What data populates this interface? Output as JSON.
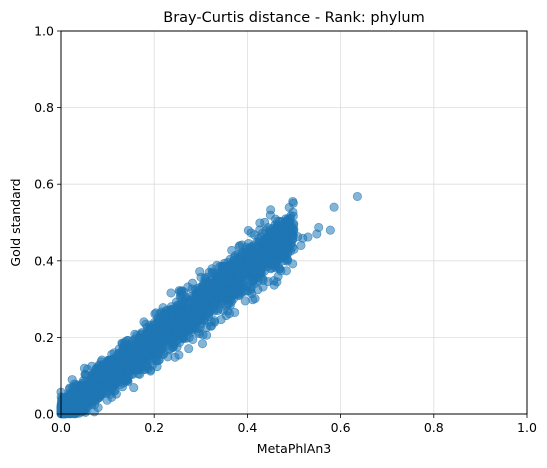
{
  "chart_data": {
    "type": "scatter",
    "title": "Bray-Curtis distance - Rank: phylum",
    "xlabel": "MetaPhlAn3",
    "ylabel": "Gold standard",
    "xlim": [
      0.0,
      1.0
    ],
    "ylim": [
      0.0,
      1.0
    ],
    "xticks": [
      "0.0",
      "0.2",
      "0.4",
      "0.6",
      "0.8",
      "1.0"
    ],
    "yticks": [
      "0.0",
      "0.2",
      "0.4",
      "0.6",
      "0.8",
      "1.0"
    ],
    "grid": true,
    "marker_color": "#1f77b4",
    "marker_alpha": 0.55,
    "density_band": {
      "x_range": [
        0.0,
        0.5
      ],
      "slope": 0.95,
      "intercept": 0.0,
      "spread": 0.035,
      "n_points": 2600
    },
    "outliers": [
      {
        "x": 0.636,
        "y": 0.568
      },
      {
        "x": 0.586,
        "y": 0.54
      },
      {
        "x": 0.553,
        "y": 0.487
      },
      {
        "x": 0.578,
        "y": 0.48
      },
      {
        "x": 0.549,
        "y": 0.47
      },
      {
        "x": 0.53,
        "y": 0.462
      },
      {
        "x": 0.519,
        "y": 0.459
      },
      {
        "x": 0.508,
        "y": 0.463
      },
      {
        "x": 0.497,
        "y": 0.455
      },
      {
        "x": 0.441,
        "y": 0.455
      },
      {
        "x": 0.515,
        "y": 0.44
      },
      {
        "x": 0.488,
        "y": 0.438
      },
      {
        "x": 0.46,
        "y": 0.42
      },
      {
        "x": 0.395,
        "y": 0.42
      },
      {
        "x": 0.476,
        "y": 0.41
      },
      {
        "x": 0.441,
        "y": 0.4
      },
      {
        "x": 0.5,
        "y": 0.43
      },
      {
        "x": 0.318,
        "y": 0.37
      },
      {
        "x": 0.372,
        "y": 0.4
      },
      {
        "x": 0.465,
        "y": 0.44
      }
    ]
  }
}
